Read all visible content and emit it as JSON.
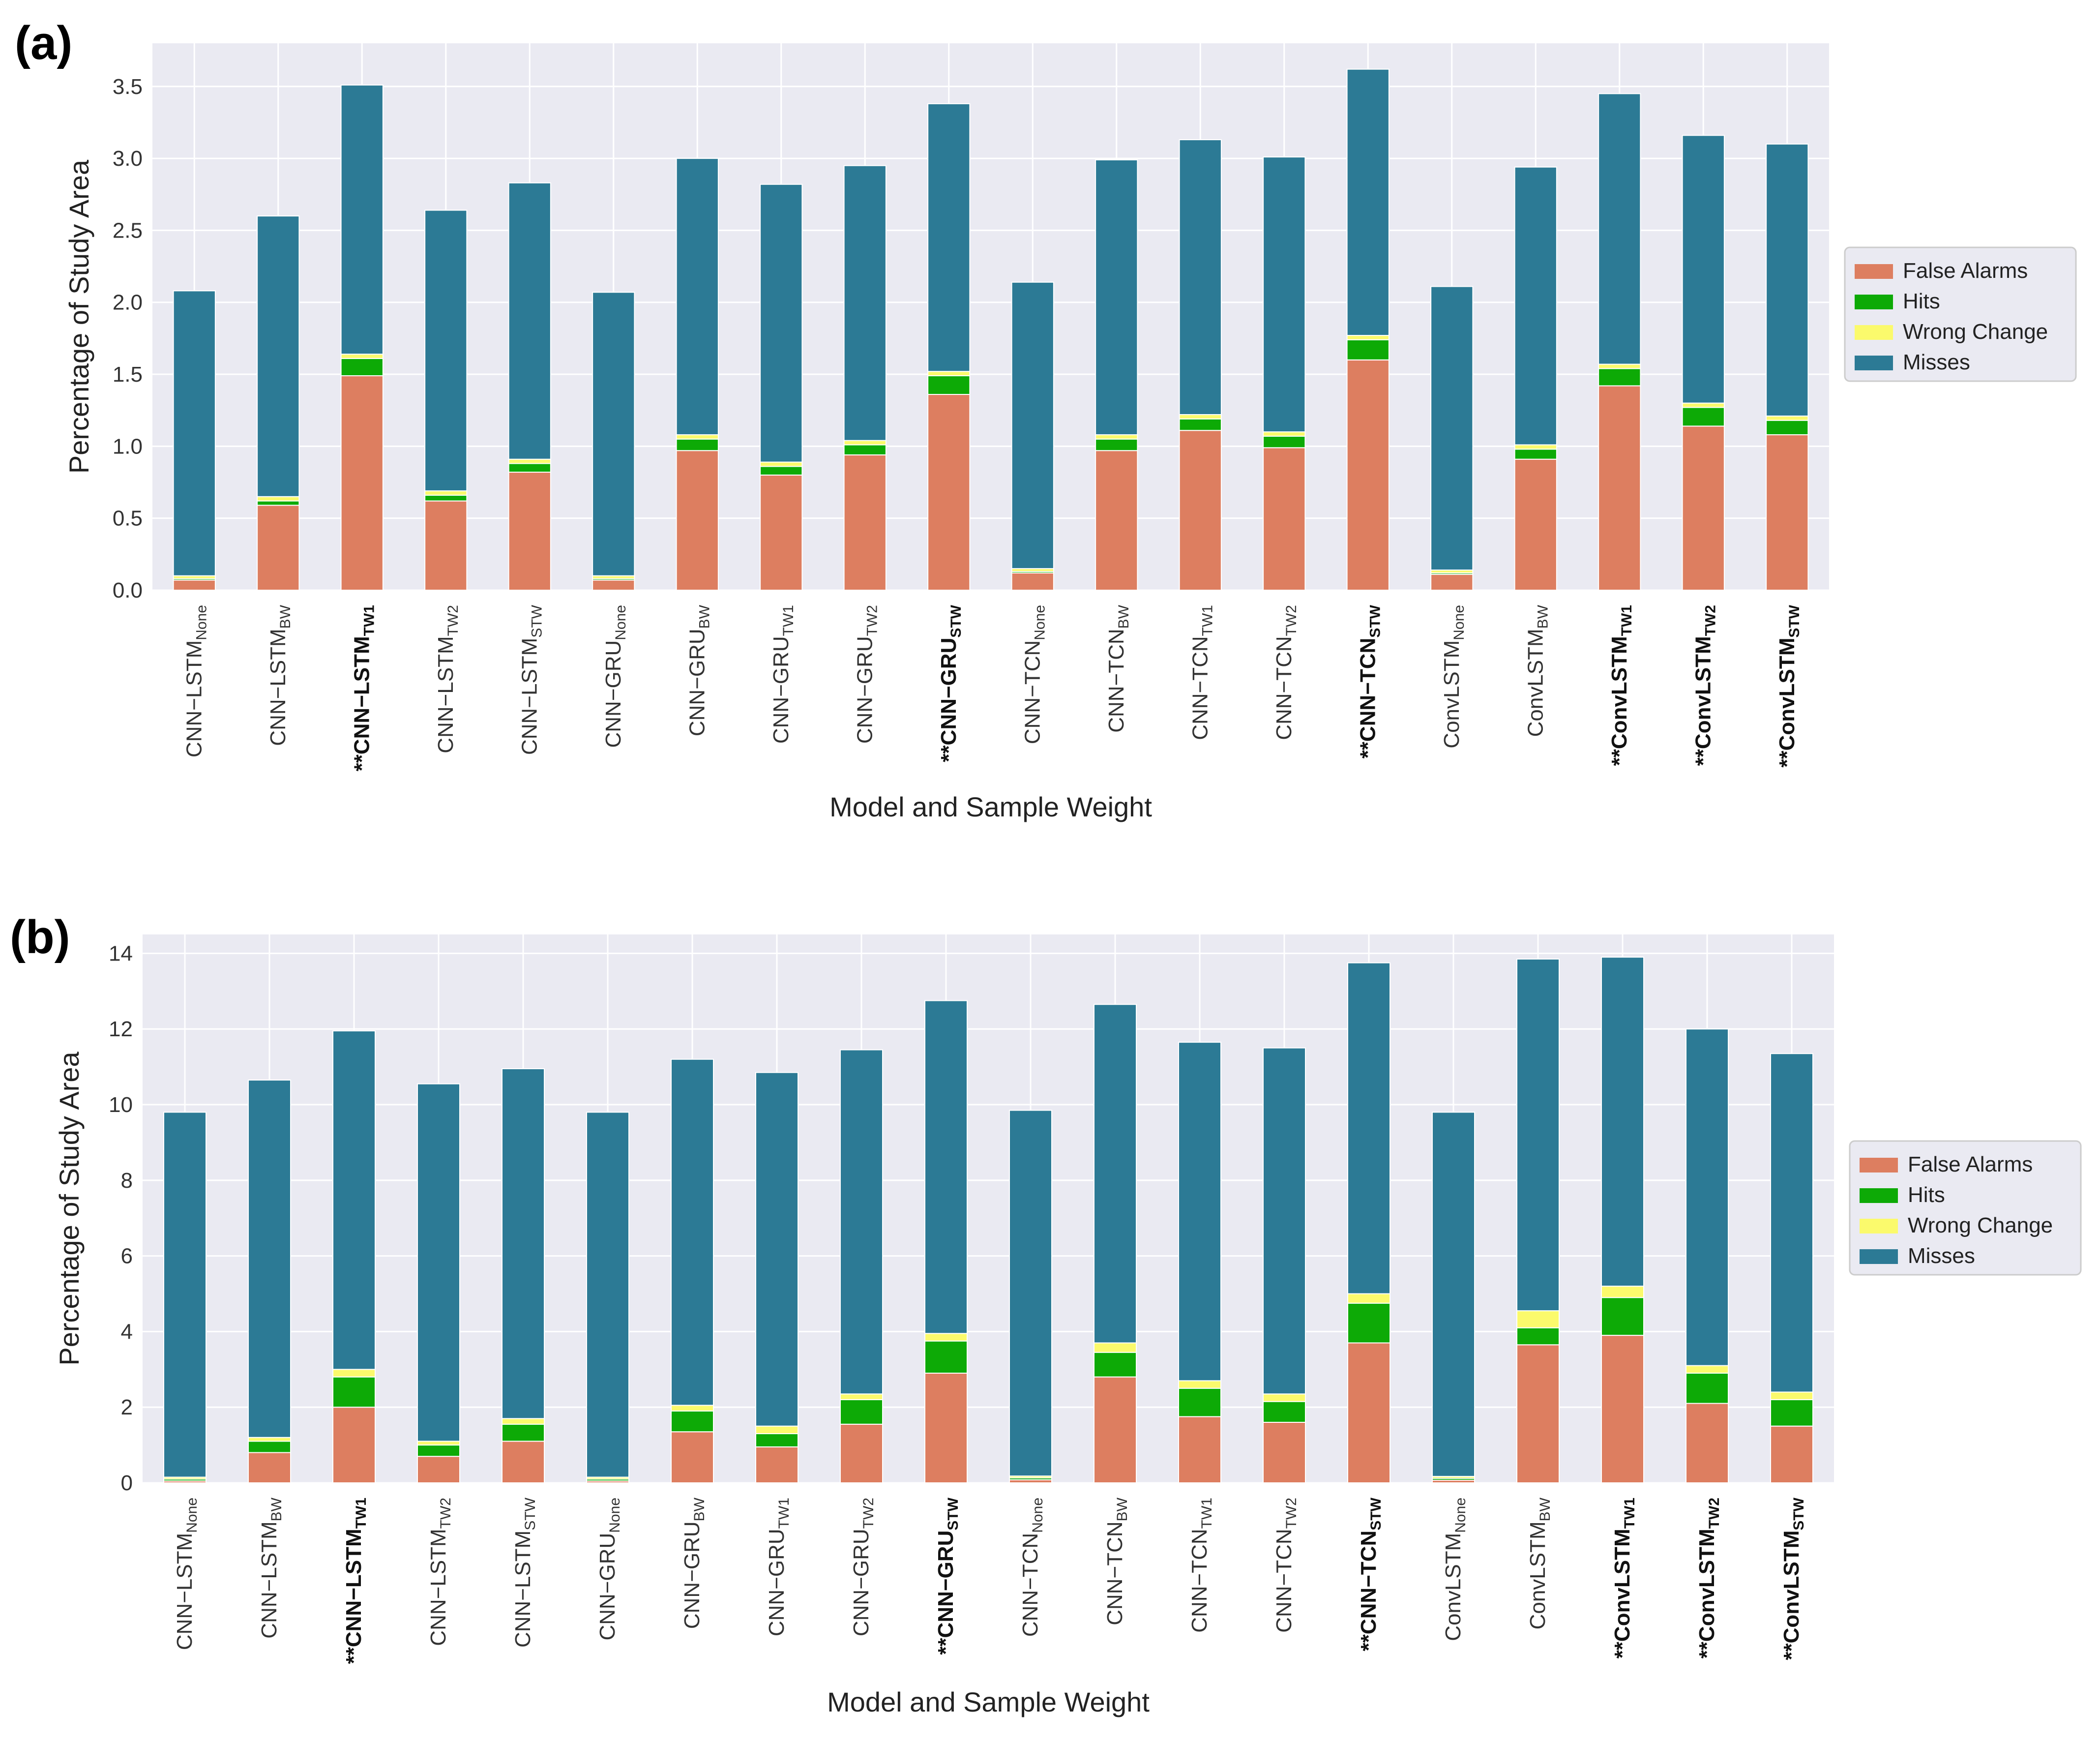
{
  "colors": {
    "false_alarms": "#DD7E60",
    "hits": "#0DAA06",
    "wrong_change": "#FBFA6C",
    "misses": "#2C7A95",
    "plot_bg": "#EAEAF2",
    "grid": "#FFFFFF"
  },
  "chart_data": [
    {
      "panel": "(a)",
      "type": "bar",
      "stacked": true,
      "xlabel": "Model and Sample Weight",
      "ylabel": "Percentage of Study Area",
      "ylim": [
        0,
        3.8
      ],
      "yticks": [
        "0.0",
        "0.5",
        "1.0",
        "1.5",
        "2.0",
        "2.5",
        "3.0",
        "3.5"
      ],
      "legend": [
        "False Alarms",
        "Hits",
        "Wrong Change",
        "Misses"
      ],
      "legend_position": "right",
      "categories": [
        {
          "prefix": "",
          "base": "CNN−LSTM",
          "sub": "None",
          "bold": false
        },
        {
          "prefix": "",
          "base": "CNN−LSTM",
          "sub": "BW",
          "bold": false
        },
        {
          "prefix": "**",
          "base": "CNN−LSTM",
          "sub": "TW1",
          "bold": true
        },
        {
          "prefix": "",
          "base": "CNN−LSTM",
          "sub": "TW2",
          "bold": false
        },
        {
          "prefix": "",
          "base": "CNN−LSTM",
          "sub": "STW",
          "bold": false
        },
        {
          "prefix": "",
          "base": "CNN−GRU",
          "sub": "None",
          "bold": false
        },
        {
          "prefix": "",
          "base": "CNN−GRU",
          "sub": "BW",
          "bold": false
        },
        {
          "prefix": "",
          "base": "CNN−GRU",
          "sub": "TW1",
          "bold": false
        },
        {
          "prefix": "",
          "base": "CNN−GRU",
          "sub": "TW2",
          "bold": false
        },
        {
          "prefix": "**",
          "base": "CNN−GRU",
          "sub": "STW",
          "bold": true
        },
        {
          "prefix": "",
          "base": "CNN−TCN",
          "sub": "None",
          "bold": false
        },
        {
          "prefix": "",
          "base": "CNN−TCN",
          "sub": "BW",
          "bold": false
        },
        {
          "prefix": "",
          "base": "CNN−TCN",
          "sub": "TW1",
          "bold": false
        },
        {
          "prefix": "",
          "base": "CNN−TCN",
          "sub": "TW2",
          "bold": false
        },
        {
          "prefix": "**",
          "base": "CNN−TCN",
          "sub": "STW",
          "bold": true
        },
        {
          "prefix": "",
          "base": "ConvLSTM",
          "sub": "None",
          "bold": false
        },
        {
          "prefix": "",
          "base": "ConvLSTM",
          "sub": "BW",
          "bold": false
        },
        {
          "prefix": "**",
          "base": "ConvLSTM",
          "sub": "TW1",
          "bold": true
        },
        {
          "prefix": "**",
          "base": "ConvLSTM",
          "sub": "TW2",
          "bold": true
        },
        {
          "prefix": "**",
          "base": "ConvLSTM",
          "sub": "STW",
          "bold": true
        }
      ],
      "series": [
        {
          "name": "False Alarms",
          "values": [
            0.07,
            0.59,
            1.49,
            0.62,
            0.82,
            0.07,
            0.97,
            0.8,
            0.94,
            1.36,
            0.12,
            0.97,
            1.11,
            0.99,
            1.6,
            0.11,
            0.91,
            1.42,
            1.14,
            1.08
          ]
        },
        {
          "name": "Hits",
          "values": [
            0.01,
            0.03,
            0.12,
            0.04,
            0.06,
            0.01,
            0.08,
            0.06,
            0.07,
            0.13,
            0.01,
            0.08,
            0.08,
            0.08,
            0.14,
            0.01,
            0.07,
            0.12,
            0.13,
            0.1
          ]
        },
        {
          "name": "Wrong Change",
          "values": [
            0.02,
            0.03,
            0.03,
            0.03,
            0.03,
            0.02,
            0.03,
            0.03,
            0.03,
            0.03,
            0.02,
            0.03,
            0.03,
            0.03,
            0.03,
            0.02,
            0.03,
            0.03,
            0.03,
            0.03
          ]
        },
        {
          "name": "Misses",
          "values": [
            1.98,
            1.95,
            1.87,
            1.95,
            1.92,
            1.97,
            1.92,
            1.93,
            1.91,
            1.86,
            1.99,
            1.91,
            1.91,
            1.91,
            1.85,
            1.97,
            1.93,
            1.88,
            1.86,
            1.89
          ]
        }
      ]
    },
    {
      "panel": "(b)",
      "type": "bar",
      "stacked": true,
      "xlabel": "Model and Sample Weight",
      "ylabel": "Percentage of Study Area",
      "ylim": [
        0,
        14.5
      ],
      "yticks": [
        "0",
        "2",
        "4",
        "6",
        "8",
        "10",
        "12",
        "14"
      ],
      "legend": [
        "False Alarms",
        "Hits",
        "Wrong Change",
        "Misses"
      ],
      "legend_position": "right",
      "categories": [
        {
          "prefix": "",
          "base": "CNN−LSTM",
          "sub": "None",
          "bold": false
        },
        {
          "prefix": "",
          "base": "CNN−LSTM",
          "sub": "BW",
          "bold": false
        },
        {
          "prefix": "**",
          "base": "CNN−LSTM",
          "sub": "TW1",
          "bold": true
        },
        {
          "prefix": "",
          "base": "CNN−LSTM",
          "sub": "TW2",
          "bold": false
        },
        {
          "prefix": "",
          "base": "CNN−LSTM",
          "sub": "STW",
          "bold": false
        },
        {
          "prefix": "",
          "base": "CNN−GRU",
          "sub": "None",
          "bold": false
        },
        {
          "prefix": "",
          "base": "CNN−GRU",
          "sub": "BW",
          "bold": false
        },
        {
          "prefix": "",
          "base": "CNN−GRU",
          "sub": "TW1",
          "bold": false
        },
        {
          "prefix": "",
          "base": "CNN−GRU",
          "sub": "TW2",
          "bold": false
        },
        {
          "prefix": "**",
          "base": "CNN−GRU",
          "sub": "STW",
          "bold": true
        },
        {
          "prefix": "",
          "base": "CNN−TCN",
          "sub": "None",
          "bold": false
        },
        {
          "prefix": "",
          "base": "CNN−TCN",
          "sub": "BW",
          "bold": false
        },
        {
          "prefix": "",
          "base": "CNN−TCN",
          "sub": "TW1",
          "bold": false
        },
        {
          "prefix": "",
          "base": "CNN−TCN",
          "sub": "TW2",
          "bold": false
        },
        {
          "prefix": "**",
          "base": "CNN−TCN",
          "sub": "STW",
          "bold": true
        },
        {
          "prefix": "",
          "base": "ConvLSTM",
          "sub": "None",
          "bold": false
        },
        {
          "prefix": "",
          "base": "ConvLSTM",
          "sub": "BW",
          "bold": false
        },
        {
          "prefix": "**",
          "base": "ConvLSTM",
          "sub": "TW1",
          "bold": true
        },
        {
          "prefix": "**",
          "base": "ConvLSTM",
          "sub": "TW2",
          "bold": true
        },
        {
          "prefix": "**",
          "base": "ConvLSTM",
          "sub": "STW",
          "bold": true
        }
      ],
      "series": [
        {
          "name": "False Alarms",
          "values": [
            0.05,
            0.8,
            2.0,
            0.7,
            1.1,
            0.05,
            1.35,
            0.95,
            1.55,
            2.9,
            0.08,
            2.8,
            1.75,
            1.6,
            3.7,
            0.07,
            3.65,
            3.9,
            2.1,
            1.5
          ]
        },
        {
          "name": "Hits",
          "values": [
            0.05,
            0.3,
            0.8,
            0.3,
            0.45,
            0.05,
            0.55,
            0.35,
            0.65,
            0.85,
            0.05,
            0.65,
            0.75,
            0.55,
            1.05,
            0.05,
            0.45,
            1.0,
            0.8,
            0.7
          ]
        },
        {
          "name": "Wrong Change",
          "values": [
            0.05,
            0.1,
            0.2,
            0.1,
            0.15,
            0.05,
            0.15,
            0.2,
            0.15,
            0.2,
            0.05,
            0.25,
            0.2,
            0.2,
            0.25,
            0.05,
            0.45,
            0.3,
            0.2,
            0.2
          ]
        },
        {
          "name": "Misses",
          "values": [
            9.65,
            9.45,
            8.95,
            9.45,
            9.25,
            9.65,
            9.15,
            9.35,
            9.1,
            8.8,
            9.67,
            8.95,
            8.95,
            9.15,
            8.75,
            9.63,
            9.3,
            8.7,
            8.9,
            8.95
          ]
        }
      ]
    }
  ]
}
